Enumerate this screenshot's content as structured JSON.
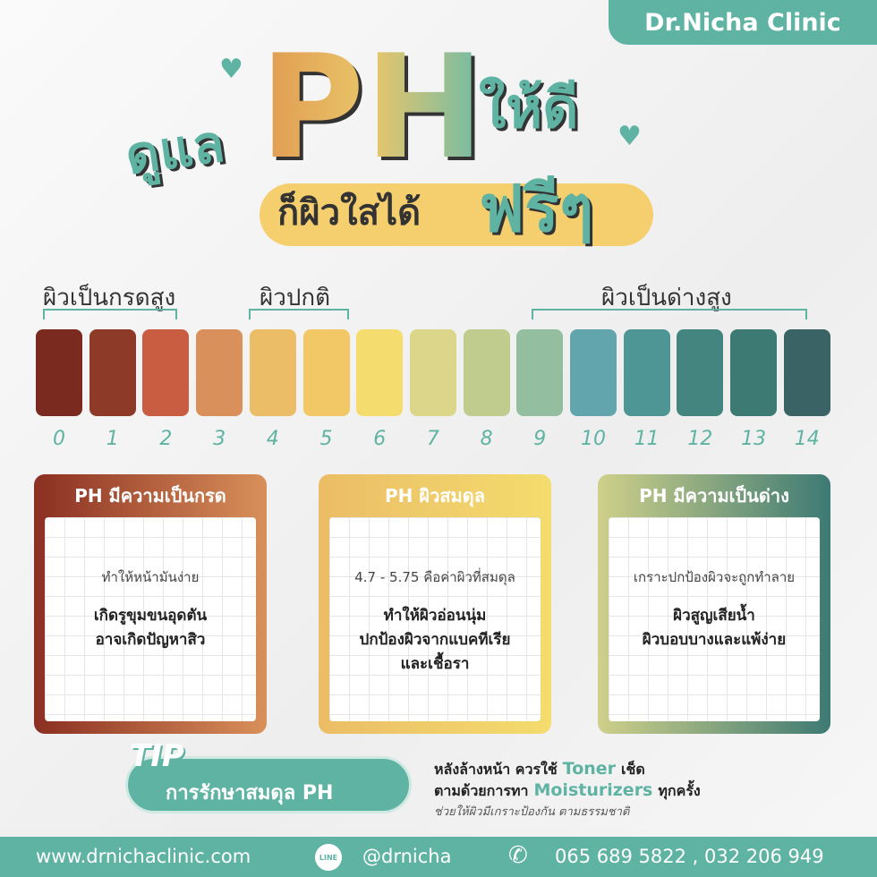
{
  "brand": "Dr.Nicha Clinic",
  "title": {
    "care": "ดูแล",
    "ph": "PH",
    "good": "ให้ดี",
    "clear": "ก็ผิวใสได้",
    "free": "ฟรีๆ"
  },
  "scale": {
    "ranges": [
      "ผิวเป็นกรดสูง",
      "ผิวปกติ",
      "ผิวเป็นด่างสูง"
    ],
    "levels": [
      0,
      1,
      2,
      3,
      4,
      5,
      6,
      7,
      8,
      9,
      10,
      11,
      12,
      13,
      14
    ]
  },
  "cards": [
    {
      "heading": "PH มีความเป็นกรด",
      "text": "ทำให้หน้ามันง่าย",
      "bold": [
        "เกิดรูขุมขนอุดตัน",
        "อาจเกิดปัญหาสิว"
      ]
    },
    {
      "heading": "PH ผิวสมดุล",
      "text": "4.7 - 5.75 คือค่าผิวที่สมดุล",
      "bold": [
        "ทำให้ผิวอ่อนนุ่ม",
        "ปกป้องผิวจากแบคทีเรีย",
        "และเชื้อรา"
      ]
    },
    {
      "heading": "PH มีความเป็นด่าง",
      "text": "เกราะปกป้องผิวจะถูกทำลาย",
      "bold": [
        "ผิวสูญเสียน้ำ",
        "ผิวบอบบางและแพ้ง่าย"
      ]
    }
  ],
  "tip": {
    "label": "TIP",
    "title": "การรักษาสมดุล PH",
    "line1": [
      "หลังล้างหน้า ควรใช้",
      "Toner",
      "เช็ด"
    ],
    "line2": [
      "ตามด้วยการทา",
      "Moisturizers",
      "ทุกครั้ง"
    ],
    "line3": "ช่วยให้ผิวมีเกราะป้องกัน ตามธรรมชาติ"
  },
  "footer": {
    "website": "www.drnichaclinic.com",
    "line_icon": "LINE",
    "line_id": "@drnicha",
    "phone": "065 689 5822 , 032 206 949"
  }
}
